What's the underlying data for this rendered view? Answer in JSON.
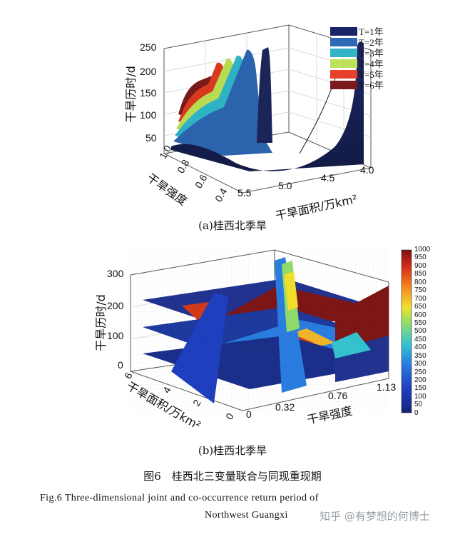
{
  "panel_a": {
    "caption": "(a)桂西北季旱",
    "zlabel": "干旱历时/d",
    "xlabel": "干旱面积/万km²",
    "ylabel": "干旱强度",
    "zticks": [
      "250",
      "200",
      "150",
      "100",
      "50"
    ],
    "xticks": [
      "5.5",
      "5.0",
      "4.5",
      "4.0"
    ],
    "yticks": [
      "1.0",
      "0.8",
      "0.6",
      "0.4"
    ],
    "legend": [
      {
        "label": "T=1年",
        "color": "#1a2466"
      },
      {
        "label": "T=2年",
        "color": "#2d69b5"
      },
      {
        "label": "T=3年",
        "color": "#34b3c7"
      },
      {
        "label": "T=4年",
        "color": "#bfe05a"
      },
      {
        "label": "T=5年",
        "color": "#e8402a"
      },
      {
        "label": "T=6年",
        "color": "#7a1a1a"
      }
    ]
  },
  "panel_b": {
    "caption": "(b)桂西北季旱",
    "zlabel": "干旱历时/d",
    "xlabel": "干旱面积/万km²",
    "ylabel": "干旱强度",
    "zticks": [
      "300",
      "200",
      "100",
      "0"
    ],
    "xticks": [
      "6",
      "4",
      "2",
      "0"
    ],
    "yticks": [
      "0",
      "0.32",
      "0.76",
      "1.13"
    ],
    "colorbar_ticks": [
      "1000",
      "950",
      "900",
      "850",
      "800",
      "750",
      "700",
      "650",
      "600",
      "550",
      "500",
      "450",
      "400",
      "350",
      "300",
      "250",
      "200",
      "150",
      "100",
      "50",
      "0"
    ]
  },
  "figure_caption": "图6　桂西北三变量联合与同现重现期",
  "figure_caption_en_line1": "Fig.6   Three-dimensional joint and co-occurrence return period of",
  "figure_caption_en_line2": "Northwest Guangxi",
  "watermark": "知乎 @有梦想的何博士",
  "chart_data": [
    {
      "type": "surface",
      "title": "(a)桂西北季旱",
      "xlabel": "干旱面积/万km²",
      "ylabel": "干旱强度",
      "zlabel": "干旱历时/d",
      "xlim": [
        4.0,
        5.5
      ],
      "ylim": [
        0.4,
        1.0
      ],
      "zlim": [
        50,
        250
      ],
      "series": [
        {
          "name": "T=1年",
          "z_floor": 55
        },
        {
          "name": "T=2年",
          "z_floor": 70
        },
        {
          "name": "T=3年",
          "z_floor": 85
        },
        {
          "name": "T=4年",
          "z_floor": 95
        },
        {
          "name": "T=5年",
          "z_floor": 105
        },
        {
          "name": "T=6年",
          "z_floor": 115
        }
      ]
    },
    {
      "type": "slice",
      "title": "(b)桂西北季旱",
      "xlabel": "干旱面积/万km²",
      "ylabel": "干旱强度",
      "zlabel": "干旱历时/d",
      "xlim": [
        0,
        6
      ],
      "ylim": [
        0,
        1.13
      ],
      "zlim": [
        0,
        300
      ],
      "colorbar_range": [
        0,
        1000
      ]
    }
  ]
}
